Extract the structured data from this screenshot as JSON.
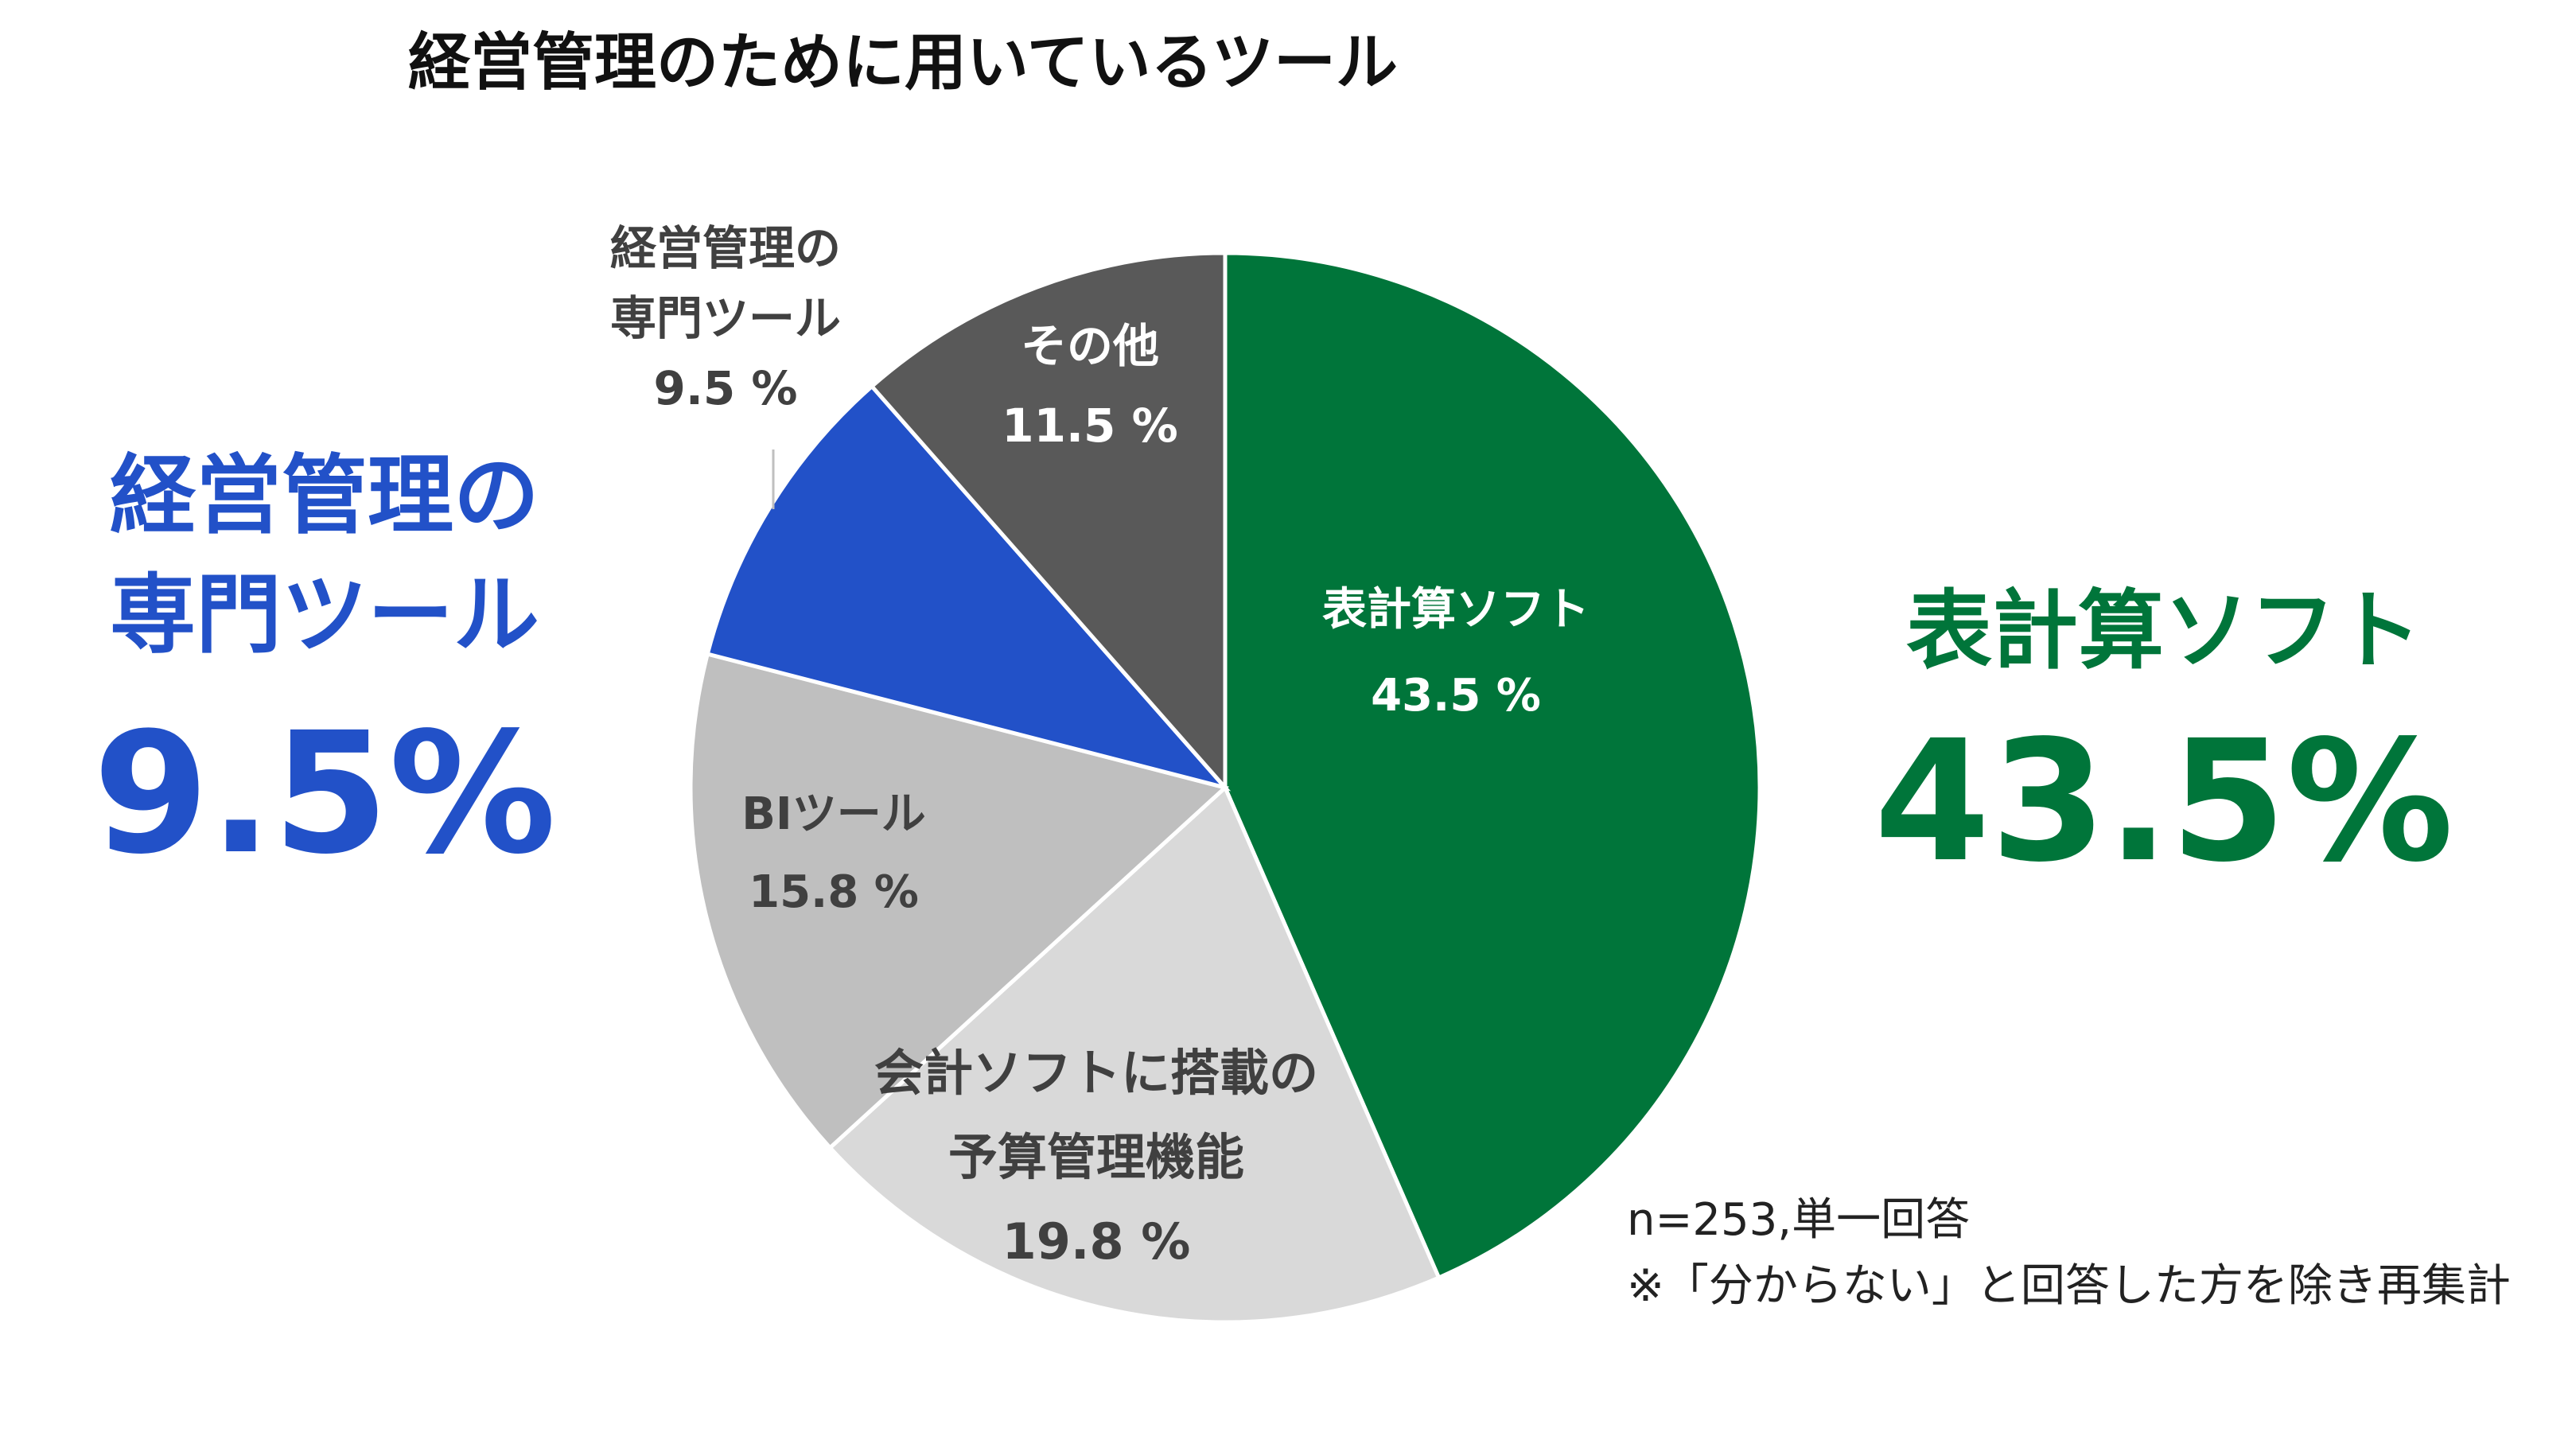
{
  "chart_data": {
    "type": "pie",
    "title": "経営管理のために用いているツール",
    "slices": [
      {
        "key": "spreadsheet",
        "label": [
          "表計算ソフト"
        ],
        "value": 43.5,
        "value_text": "43.5 %",
        "color": "#00753A",
        "text_color": "#ffffff"
      },
      {
        "key": "accounting",
        "label": [
          "会計ソフトに搭載の",
          "予算管理機能"
        ],
        "value": 19.8,
        "value_text": "19.8 %",
        "color": "#D9D9D9",
        "text_color": "#404040"
      },
      {
        "key": "bi",
        "label": [
          "BIツール"
        ],
        "value": 15.8,
        "value_text": "15.8 %",
        "color": "#BFBFBF",
        "text_color": "#404040"
      },
      {
        "key": "specialized",
        "label": [
          "経営管理の",
          "専門ツール"
        ],
        "value": 9.5,
        "value_text": "9.5 %",
        "color": "#2251C8",
        "text_color": "#404040"
      },
      {
        "key": "other",
        "label": [
          "その他"
        ],
        "value": 11.5,
        "value_text": "11.5 %",
        "color": "#595959",
        "text_color": "#ffffff"
      }
    ],
    "callouts": [
      {
        "key": "specialized",
        "label": [
          "経営管理の",
          "専門ツール"
        ],
        "value_text": "9.5%",
        "color": "#2251C8"
      },
      {
        "key": "spreadsheet",
        "label": [
          "表計算ソフト"
        ],
        "value_text": "43.5%",
        "color": "#00753A"
      }
    ],
    "notes": [
      "n=253,単一回答",
      "※「分からない」と回答した方を除き再集計"
    ]
  }
}
